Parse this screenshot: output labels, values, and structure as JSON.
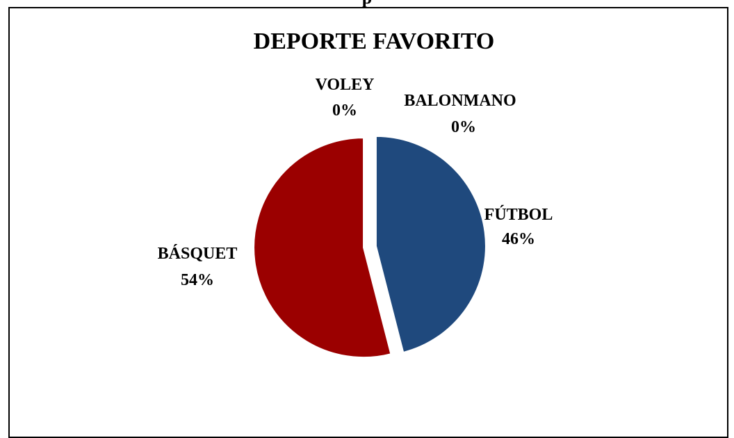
{
  "page_header": "p",
  "chart_data": {
    "type": "pie",
    "title": "DEPORTE FAVORITO",
    "categories": [
      "FÚTBOL",
      "BÁSQUET",
      "VOLEY",
      "BALONMANO"
    ],
    "values": [
      46,
      54,
      0,
      0
    ],
    "labels": [
      {
        "name": "FÚTBOL",
        "percent": "46%"
      },
      {
        "name": "BÁSQUET",
        "percent": "54%"
      },
      {
        "name": "VOLEY",
        "percent": "0%"
      },
      {
        "name": "BALONMANO",
        "percent": "0%"
      }
    ],
    "colors": [
      "#1F497D",
      "#9B0000",
      "#7F7F7F",
      "#7F7F7F"
    ],
    "exploded": true,
    "legend": "none"
  }
}
